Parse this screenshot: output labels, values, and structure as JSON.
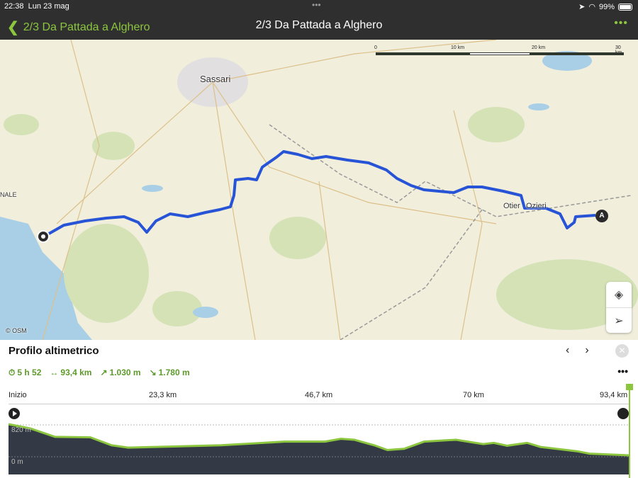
{
  "status_bar": {
    "time": "22:38",
    "date": "Lun 23 mag",
    "battery": "99%",
    "dots": "•••"
  },
  "nav": {
    "back_label": "2/3 Da Pattada a Alghero",
    "title": "2/3 Da Pattada a Alghero",
    "more": "•••"
  },
  "map": {
    "labels": {
      "sassari": "Sassari",
      "otier": "Otier",
      "ozieri": "Ozieri",
      "nale": "NALE",
      "osm": "© OSM",
      "start_marker": "A"
    },
    "scale": [
      "0",
      "10 km",
      "20 km",
      "30 km"
    ],
    "route_color": "#2753d6",
    "icons": [
      "layers-icon",
      "locate-icon"
    ]
  },
  "profile": {
    "title": "Profilo altimetrico",
    "stats": {
      "duration": "5 h 52",
      "distance": "93,4 km",
      "ascent": "1.030 m",
      "descent": "1.780 m"
    },
    "accent": "#5d9a2a",
    "more": "•••",
    "close": "✕",
    "prev": "‹",
    "next": "›"
  },
  "chart_data": {
    "type": "area",
    "x_tick_labels": [
      "Inizio",
      "23,3 km",
      "46,7 km",
      "70 km",
      "93,4 km"
    ],
    "y_tick_labels": [
      "820 m",
      "0 m"
    ],
    "xlim": [
      0,
      93.4
    ],
    "ylim_markers": [
      0,
      820
    ],
    "x_km": [
      0,
      3.3,
      7,
      12.3,
      15.5,
      18,
      32,
      41.5,
      47.6,
      50,
      52,
      55,
      57,
      59.5,
      62.5,
      67.3,
      71.4,
      73,
      75,
      78,
      80,
      85.5,
      87.4,
      93.4
    ],
    "elevation_m": [
      838,
      727,
      512,
      500,
      296,
      234,
      296,
      389,
      389,
      462,
      438,
      296,
      173,
      204,
      389,
      438,
      327,
      358,
      284,
      358,
      253,
      142,
      80,
      37
    ],
    "fill_color": "#333a45",
    "line_color": "#8cc63f"
  }
}
